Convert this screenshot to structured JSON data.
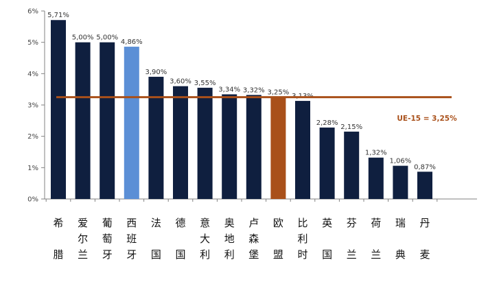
{
  "chart_data": {
    "type": "bar",
    "categories": [
      "希腊",
      "爱尔兰",
      "葡萄牙",
      "西班牙",
      "法国",
      "德国",
      "意大利",
      "奥地利",
      "卢森堡",
      "欧盟",
      "比利时",
      "英国",
      "芬兰",
      "荷兰",
      "瑞典",
      "丹麦"
    ],
    "values": [
      5.71,
      5.0,
      5.0,
      4.86,
      3.9,
      3.6,
      3.55,
      3.34,
      3.32,
      3.25,
      3.13,
      2.28,
      2.15,
      1.32,
      1.06,
      0.87
    ],
    "data_labels": [
      "5,71%",
      "5,00%",
      "5,00%",
      "4,86%",
      "3,90%",
      "3,60%",
      "3,55%",
      "3,34%",
      "3,32%",
      "3,25%",
      "3,13%",
      "2,28%",
      "2,15%",
      "1,32%",
      "1,06%",
      "0,87%"
    ],
    "bar_colors": [
      "#0f1f3f",
      "#0f1f3f",
      "#0f1f3f",
      "#5b8fd6",
      "#0f1f3f",
      "#0f1f3f",
      "#0f1f3f",
      "#0f1f3f",
      "#0f1f3f",
      "#a9501a",
      "#0f1f3f",
      "#0f1f3f",
      "#0f1f3f",
      "#0f1f3f",
      "#0f1f3f",
      "#0f1f3f"
    ],
    "ylim": [
      0,
      6
    ],
    "yticks": [
      0,
      1,
      2,
      3,
      4,
      5,
      6
    ],
    "ytick_labels": [
      "0%",
      "1%",
      "2%",
      "3%",
      "4%",
      "5%",
      "6%"
    ],
    "reference_line": {
      "value": 3.25,
      "label": "UE-15 = 3,25%",
      "color": "#a9501a"
    },
    "title": "",
    "xlabel": "",
    "ylabel": "",
    "grid": false,
    "legend": "none"
  }
}
